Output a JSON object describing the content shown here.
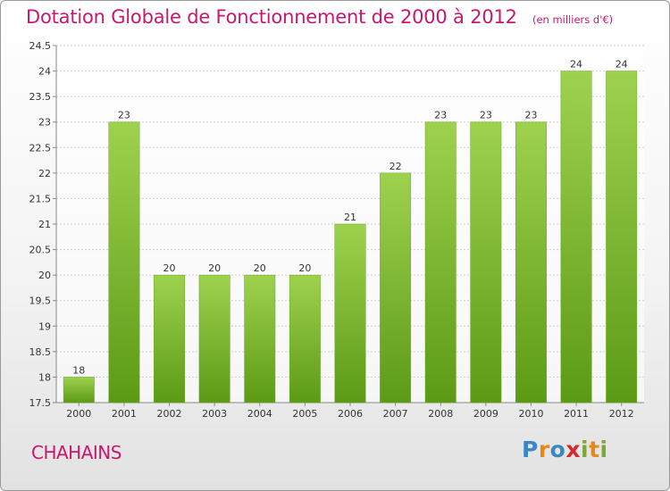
{
  "header": {
    "title": "Dotation Globale de Fonctionnement de 2000 à 2012",
    "subtitle": "(en milliers d'€)"
  },
  "footer": {
    "commune": "CHAHAINS",
    "logo_letters": [
      "P",
      "r",
      "o",
      "x",
      "i",
      "t",
      "i"
    ]
  },
  "colors": {
    "bar_top": "#9ed24e",
    "bar_bottom": "#5c9a16",
    "title": "#c7186f",
    "grid": "#d0d0d0"
  },
  "chart_data": {
    "type": "bar",
    "categories": [
      "2000",
      "2001",
      "2002",
      "2003",
      "2004",
      "2005",
      "2006",
      "2007",
      "2008",
      "2009",
      "2010",
      "2011",
      "2012"
    ],
    "values": [
      18,
      23,
      20,
      20,
      20,
      20,
      21,
      22,
      23,
      23,
      23,
      24,
      24
    ],
    "value_labels": [
      "18",
      "23",
      "20",
      "20",
      "20",
      "20",
      "21",
      "22",
      "23",
      "23",
      "23",
      "24",
      "24"
    ],
    "yticks": [
      "17.5",
      "18",
      "18.5",
      "19",
      "19.5",
      "20",
      "20.5",
      "21",
      "21.5",
      "22",
      "22.5",
      "23",
      "23.5",
      "24",
      "24.5"
    ],
    "ylim": [
      17.5,
      24.5
    ],
    "title": "Dotation Globale de Fonctionnement de 2000 à 2012",
    "xlabel": "",
    "ylabel": "",
    "grid": true
  }
}
